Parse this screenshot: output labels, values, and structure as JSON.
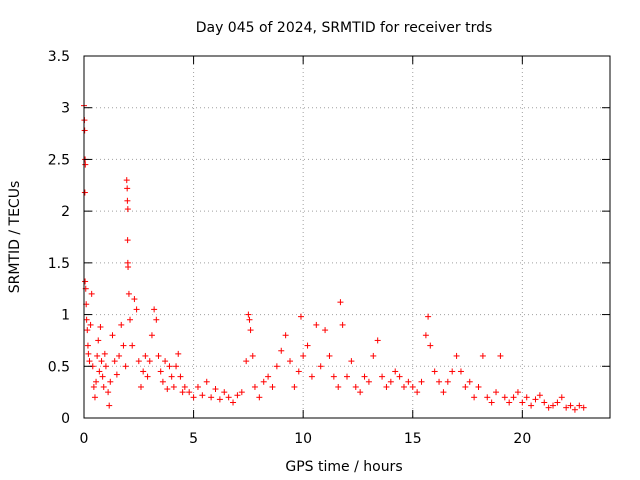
{
  "chart_data": {
    "type": "scatter",
    "title": "Day 045 of 2024, SRMTID for receiver trds",
    "xlabel": "GPS time / hours",
    "ylabel": "SRMTID / TECUs",
    "xlim": [
      0,
      24
    ],
    "ylim": [
      0,
      3.5
    ],
    "xticks": [
      0,
      5,
      10,
      15,
      20
    ],
    "yticks": [
      0,
      0.5,
      1,
      1.5,
      2,
      2.5,
      3,
      3.5
    ],
    "xtick_labels": [
      "0",
      "5",
      "10",
      "15",
      "20"
    ],
    "ytick_labels": [
      "0",
      "0.5",
      "1",
      "1.5",
      "2",
      "2.5",
      "3",
      "3.5"
    ],
    "grid": true,
    "marker": "+",
    "color": "#ff0000",
    "series": [
      {
        "name": "SRMTID",
        "points": [
          [
            0.0,
            3.02
          ],
          [
            0.02,
            2.88
          ],
          [
            0.03,
            2.78
          ],
          [
            0.05,
            2.5
          ],
          [
            0.06,
            2.45
          ],
          [
            0.04,
            2.18
          ],
          [
            0.05,
            1.32
          ],
          [
            0.08,
            1.25
          ],
          [
            0.1,
            1.1
          ],
          [
            0.12,
            0.95
          ],
          [
            0.15,
            0.85
          ],
          [
            0.18,
            0.7
          ],
          [
            0.2,
            0.62
          ],
          [
            0.25,
            0.55
          ],
          [
            0.3,
            0.9
          ],
          [
            0.35,
            1.2
          ],
          [
            0.4,
            0.5
          ],
          [
            0.45,
            0.3
          ],
          [
            0.5,
            0.2
          ],
          [
            0.55,
            0.35
          ],
          [
            0.6,
            0.6
          ],
          [
            0.65,
            0.75
          ],
          [
            0.7,
            0.45
          ],
          [
            0.75,
            0.88
          ],
          [
            0.8,
            0.55
          ],
          [
            0.85,
            0.4
          ],
          [
            0.9,
            0.3
          ],
          [
            0.95,
            0.62
          ],
          [
            1.0,
            0.5
          ],
          [
            1.1,
            0.25
          ],
          [
            1.15,
            0.12
          ],
          [
            1.2,
            0.35
          ],
          [
            1.3,
            0.8
          ],
          [
            1.4,
            0.55
          ],
          [
            1.5,
            0.42
          ],
          [
            1.6,
            0.6
          ],
          [
            1.7,
            0.9
          ],
          [
            1.8,
            0.7
          ],
          [
            1.9,
            0.5
          ],
          [
            1.95,
            2.3
          ],
          [
            1.97,
            2.22
          ],
          [
            1.98,
            2.1
          ],
          [
            2.0,
            2.02
          ],
          [
            1.99,
            1.72
          ],
          [
            2.0,
            1.5
          ],
          [
            2.01,
            1.46
          ],
          [
            2.05,
            1.2
          ],
          [
            2.1,
            0.95
          ],
          [
            2.2,
            0.7
          ],
          [
            2.3,
            1.15
          ],
          [
            2.4,
            1.05
          ],
          [
            2.5,
            0.55
          ],
          [
            2.6,
            0.3
          ],
          [
            2.7,
            0.45
          ],
          [
            2.8,
            0.6
          ],
          [
            2.9,
            0.4
          ],
          [
            3.0,
            0.55
          ],
          [
            3.1,
            0.8
          ],
          [
            3.2,
            1.05
          ],
          [
            3.3,
            0.95
          ],
          [
            3.4,
            0.6
          ],
          [
            3.5,
            0.45
          ],
          [
            3.6,
            0.35
          ],
          [
            3.7,
            0.55
          ],
          [
            3.8,
            0.28
          ],
          [
            3.9,
            0.5
          ],
          [
            4.0,
            0.4
          ],
          [
            4.1,
            0.3
          ],
          [
            4.2,
            0.5
          ],
          [
            4.3,
            0.62
          ],
          [
            4.4,
            0.4
          ],
          [
            4.5,
            0.25
          ],
          [
            4.6,
            0.3
          ],
          [
            4.8,
            0.25
          ],
          [
            5.0,
            0.2
          ],
          [
            5.2,
            0.3
          ],
          [
            5.4,
            0.22
          ],
          [
            5.6,
            0.35
          ],
          [
            5.8,
            0.2
          ],
          [
            6.0,
            0.28
          ],
          [
            6.2,
            0.18
          ],
          [
            6.4,
            0.25
          ],
          [
            6.6,
            0.2
          ],
          [
            6.8,
            0.15
          ],
          [
            7.0,
            0.22
          ],
          [
            7.2,
            0.25
          ],
          [
            7.4,
            0.55
          ],
          [
            7.5,
            1.0
          ],
          [
            7.55,
            0.95
          ],
          [
            7.6,
            0.85
          ],
          [
            7.7,
            0.6
          ],
          [
            7.8,
            0.3
          ],
          [
            8.0,
            0.2
          ],
          [
            8.2,
            0.35
          ],
          [
            8.4,
            0.4
          ],
          [
            8.6,
            0.3
          ],
          [
            8.8,
            0.5
          ],
          [
            9.0,
            0.65
          ],
          [
            9.2,
            0.8
          ],
          [
            9.4,
            0.55
          ],
          [
            9.6,
            0.3
          ],
          [
            9.8,
            0.45
          ],
          [
            9.9,
            0.98
          ],
          [
            10.0,
            0.6
          ],
          [
            10.2,
            0.7
          ],
          [
            10.4,
            0.4
          ],
          [
            10.6,
            0.9
          ],
          [
            10.8,
            0.5
          ],
          [
            11.0,
            0.85
          ],
          [
            11.2,
            0.6
          ],
          [
            11.4,
            0.4
          ],
          [
            11.6,
            0.3
          ],
          [
            11.7,
            1.12
          ],
          [
            11.8,
            0.9
          ],
          [
            12.0,
            0.4
          ],
          [
            12.2,
            0.55
          ],
          [
            12.4,
            0.3
          ],
          [
            12.6,
            0.25
          ],
          [
            12.8,
            0.4
          ],
          [
            13.0,
            0.35
          ],
          [
            13.2,
            0.6
          ],
          [
            13.4,
            0.75
          ],
          [
            13.6,
            0.4
          ],
          [
            13.8,
            0.3
          ],
          [
            14.0,
            0.35
          ],
          [
            14.2,
            0.45
          ],
          [
            14.4,
            0.4
          ],
          [
            14.6,
            0.3
          ],
          [
            14.8,
            0.35
          ],
          [
            15.0,
            0.3
          ],
          [
            15.2,
            0.25
          ],
          [
            15.4,
            0.35
          ],
          [
            15.6,
            0.8
          ],
          [
            15.7,
            0.98
          ],
          [
            15.8,
            0.7
          ],
          [
            16.0,
            0.45
          ],
          [
            16.2,
            0.35
          ],
          [
            16.4,
            0.25
          ],
          [
            16.6,
            0.35
          ],
          [
            16.8,
            0.45
          ],
          [
            17.0,
            0.6
          ],
          [
            17.2,
            0.45
          ],
          [
            17.4,
            0.3
          ],
          [
            17.6,
            0.35
          ],
          [
            17.8,
            0.2
          ],
          [
            18.0,
            0.3
          ],
          [
            18.2,
            0.6
          ],
          [
            18.4,
            0.2
          ],
          [
            18.6,
            0.15
          ],
          [
            18.8,
            0.25
          ],
          [
            19.0,
            0.6
          ],
          [
            19.2,
            0.2
          ],
          [
            19.4,
            0.15
          ],
          [
            19.6,
            0.2
          ],
          [
            19.8,
            0.25
          ],
          [
            20.0,
            0.15
          ],
          [
            20.2,
            0.2
          ],
          [
            20.4,
            0.12
          ],
          [
            20.6,
            0.18
          ],
          [
            20.8,
            0.22
          ],
          [
            21.0,
            0.15
          ],
          [
            21.2,
            0.1
          ],
          [
            21.4,
            0.12
          ],
          [
            21.6,
            0.15
          ],
          [
            21.8,
            0.2
          ],
          [
            22.0,
            0.1
          ],
          [
            22.2,
            0.12
          ],
          [
            22.4,
            0.08
          ],
          [
            22.6,
            0.12
          ],
          [
            22.8,
            0.1
          ]
        ]
      }
    ]
  }
}
